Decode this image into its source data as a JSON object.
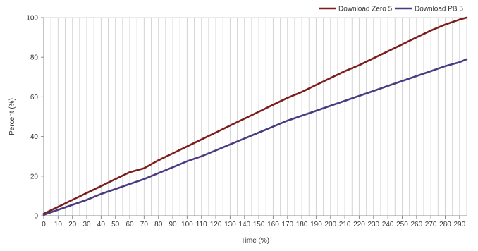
{
  "chart_data": {
    "type": "line",
    "title": "",
    "xlabel": "Time (%)",
    "ylabel": "Percent (%)",
    "xlim": [
      0,
      295
    ],
    "ylim": [
      0,
      100
    ],
    "x_ticks": [
      0,
      10,
      20,
      30,
      40,
      50,
      60,
      70,
      80,
      90,
      100,
      110,
      120,
      130,
      140,
      150,
      160,
      170,
      180,
      190,
      200,
      210,
      220,
      230,
      240,
      250,
      260,
      270,
      280,
      290
    ],
    "y_ticks": [
      0,
      20,
      40,
      60,
      80,
      100
    ],
    "grid": {
      "vertical": true,
      "horizontal": false
    },
    "legend_position": "top-right",
    "x": [
      0,
      10,
      20,
      30,
      40,
      50,
      60,
      70,
      80,
      90,
      100,
      110,
      120,
      130,
      140,
      150,
      160,
      170,
      180,
      190,
      200,
      210,
      220,
      230,
      240,
      250,
      260,
      270,
      280,
      290,
      295
    ],
    "series": [
      {
        "name": "Download Zero 5",
        "color": "#7b1d1d",
        "values": [
          1,
          4.5,
          8,
          11.5,
          15,
          18.5,
          22,
          24,
          28,
          31.5,
          35,
          38.5,
          42,
          45.5,
          49,
          52.5,
          56,
          59.5,
          62.5,
          66,
          69.5,
          73,
          76,
          79.5,
          83,
          86.5,
          90,
          93.5,
          96.5,
          99,
          100
        ]
      },
      {
        "name": "Download PB 5",
        "color": "#4b3a82",
        "values": [
          0.5,
          3,
          5.5,
          8,
          11,
          13.5,
          16,
          18.5,
          21.5,
          24.5,
          27.5,
          30,
          33,
          36,
          39,
          42,
          45,
          48,
          50.5,
          53,
          55.5,
          58,
          60.5,
          63,
          65.5,
          68,
          70.5,
          73,
          75.5,
          77.5,
          79
        ]
      }
    ]
  }
}
